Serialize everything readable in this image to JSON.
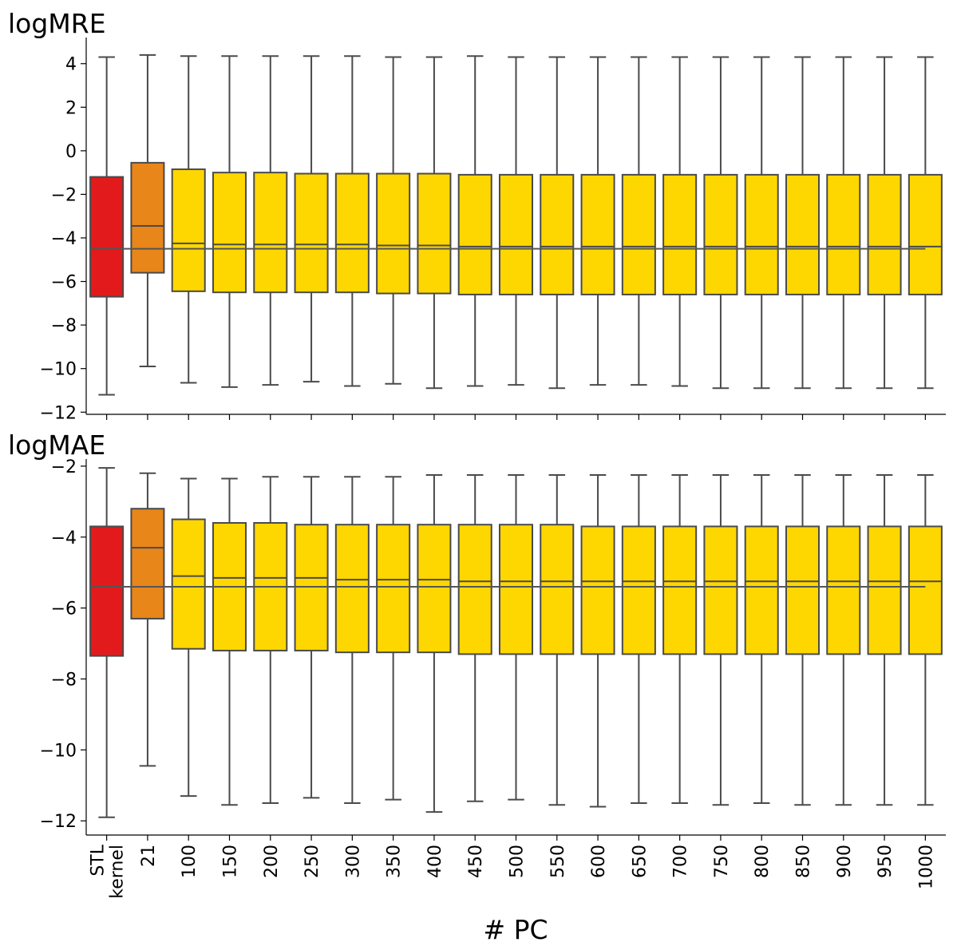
{
  "chart_data": {
    "type": "box",
    "xlabel": "# PC",
    "categories": [
      "STL\nkernel",
      "21",
      "100",
      "150",
      "200",
      "250",
      "300",
      "350",
      "400",
      "450",
      "500",
      "550",
      "600",
      "650",
      "700",
      "750",
      "800",
      "850",
      "900",
      "950",
      "1000"
    ],
    "colors": {
      "baseline": "#e31a1c",
      "pc21": "#e8861a",
      "others": "#ffd700",
      "box_edge": "#4a4a4a",
      "reference_line": "#555555"
    },
    "panels": [
      {
        "title": "logMRE",
        "ylim": [
          -12.1,
          5.2
        ],
        "yticks": [
          4,
          2,
          0,
          -2,
          -4,
          -6,
          -8,
          -10,
          -12
        ],
        "reference_line": -4.5,
        "boxes": [
          {
            "category": "STL\nkernel",
            "whisker_low": -11.2,
            "q1": -6.7,
            "median": -4.5,
            "q3": -1.2,
            "whisker_high": 4.3
          },
          {
            "category": "21",
            "whisker_low": -9.9,
            "q1": -5.6,
            "median": -3.45,
            "q3": -0.55,
            "whisker_high": 4.4
          },
          {
            "category": "100",
            "whisker_low": -10.65,
            "q1": -6.45,
            "median": -4.25,
            "q3": -0.85,
            "whisker_high": 4.35
          },
          {
            "category": "150",
            "whisker_low": -10.85,
            "q1": -6.5,
            "median": -4.3,
            "q3": -1.0,
            "whisker_high": 4.35
          },
          {
            "category": "200",
            "whisker_low": -10.75,
            "q1": -6.5,
            "median": -4.3,
            "q3": -1.0,
            "whisker_high": 4.35
          },
          {
            "category": "250",
            "whisker_low": -10.6,
            "q1": -6.5,
            "median": -4.3,
            "q3": -1.05,
            "whisker_high": 4.35
          },
          {
            "category": "300",
            "whisker_low": -10.8,
            "q1": -6.5,
            "median": -4.3,
            "q3": -1.05,
            "whisker_high": 4.35
          },
          {
            "category": "350",
            "whisker_low": -10.7,
            "q1": -6.55,
            "median": -4.35,
            "q3": -1.05,
            "whisker_high": 4.3
          },
          {
            "category": "400",
            "whisker_low": -10.9,
            "q1": -6.55,
            "median": -4.35,
            "q3": -1.05,
            "whisker_high": 4.3
          },
          {
            "category": "450",
            "whisker_low": -10.8,
            "q1": -6.6,
            "median": -4.4,
            "q3": -1.1,
            "whisker_high": 4.35
          },
          {
            "category": "500",
            "whisker_low": -10.75,
            "q1": -6.6,
            "median": -4.4,
            "q3": -1.1,
            "whisker_high": 4.3
          },
          {
            "category": "550",
            "whisker_low": -10.9,
            "q1": -6.6,
            "median": -4.4,
            "q3": -1.1,
            "whisker_high": 4.3
          },
          {
            "category": "600",
            "whisker_low": -10.75,
            "q1": -6.6,
            "median": -4.4,
            "q3": -1.1,
            "whisker_high": 4.3
          },
          {
            "category": "650",
            "whisker_low": -10.75,
            "q1": -6.6,
            "median": -4.4,
            "q3": -1.1,
            "whisker_high": 4.3
          },
          {
            "category": "700",
            "whisker_low": -10.8,
            "q1": -6.6,
            "median": -4.4,
            "q3": -1.1,
            "whisker_high": 4.3
          },
          {
            "category": "750",
            "whisker_low": -10.9,
            "q1": -6.6,
            "median": -4.4,
            "q3": -1.1,
            "whisker_high": 4.3
          },
          {
            "category": "800",
            "whisker_low": -10.9,
            "q1": -6.6,
            "median": -4.4,
            "q3": -1.1,
            "whisker_high": 4.3
          },
          {
            "category": "850",
            "whisker_low": -10.9,
            "q1": -6.6,
            "median": -4.4,
            "q3": -1.1,
            "whisker_high": 4.3
          },
          {
            "category": "900",
            "whisker_low": -10.9,
            "q1": -6.6,
            "median": -4.4,
            "q3": -1.1,
            "whisker_high": 4.3
          },
          {
            "category": "950",
            "whisker_low": -10.9,
            "q1": -6.6,
            "median": -4.4,
            "q3": -1.1,
            "whisker_high": 4.3
          },
          {
            "category": "1000",
            "whisker_low": -10.9,
            "q1": -6.6,
            "median": -4.4,
            "q3": -1.1,
            "whisker_high": 4.3
          }
        ]
      },
      {
        "title": "logMAE",
        "ylim": [
          -12.4,
          -1.8
        ],
        "yticks": [
          -2,
          -4,
          -6,
          -8,
          -10,
          -12
        ],
        "reference_line": -5.4,
        "boxes": [
          {
            "category": "STL\nkernel",
            "whisker_low": -11.9,
            "q1": -7.35,
            "median": -5.4,
            "q3": -3.7,
            "whisker_high": -2.05
          },
          {
            "category": "21",
            "whisker_low": -10.45,
            "q1": -6.3,
            "median": -4.3,
            "q3": -3.2,
            "whisker_high": -2.2
          },
          {
            "category": "100",
            "whisker_low": -11.3,
            "q1": -7.15,
            "median": -5.1,
            "q3": -3.5,
            "whisker_high": -2.35
          },
          {
            "category": "150",
            "whisker_low": -11.55,
            "q1": -7.2,
            "median": -5.15,
            "q3": -3.6,
            "whisker_high": -2.35
          },
          {
            "category": "200",
            "whisker_low": -11.5,
            "q1": -7.2,
            "median": -5.15,
            "q3": -3.6,
            "whisker_high": -2.3
          },
          {
            "category": "250",
            "whisker_low": -11.35,
            "q1": -7.2,
            "median": -5.15,
            "q3": -3.65,
            "whisker_high": -2.3
          },
          {
            "category": "300",
            "whisker_low": -11.5,
            "q1": -7.25,
            "median": -5.2,
            "q3": -3.65,
            "whisker_high": -2.3
          },
          {
            "category": "350",
            "whisker_low": -11.4,
            "q1": -7.25,
            "median": -5.2,
            "q3": -3.65,
            "whisker_high": -2.3
          },
          {
            "category": "400",
            "whisker_low": -11.75,
            "q1": -7.25,
            "median": -5.2,
            "q3": -3.65,
            "whisker_high": -2.25
          },
          {
            "category": "450",
            "whisker_low": -11.45,
            "q1": -7.3,
            "median": -5.25,
            "q3": -3.65,
            "whisker_high": -2.25
          },
          {
            "category": "500",
            "whisker_low": -11.4,
            "q1": -7.3,
            "median": -5.25,
            "q3": -3.65,
            "whisker_high": -2.25
          },
          {
            "category": "550",
            "whisker_low": -11.55,
            "q1": -7.3,
            "median": -5.25,
            "q3": -3.65,
            "whisker_high": -2.25
          },
          {
            "category": "600",
            "whisker_low": -11.6,
            "q1": -7.3,
            "median": -5.25,
            "q3": -3.7,
            "whisker_high": -2.25
          },
          {
            "category": "650",
            "whisker_low": -11.5,
            "q1": -7.3,
            "median": -5.25,
            "q3": -3.7,
            "whisker_high": -2.25
          },
          {
            "category": "700",
            "whisker_low": -11.5,
            "q1": -7.3,
            "median": -5.25,
            "q3": -3.7,
            "whisker_high": -2.25
          },
          {
            "category": "750",
            "whisker_low": -11.55,
            "q1": -7.3,
            "median": -5.25,
            "q3": -3.7,
            "whisker_high": -2.25
          },
          {
            "category": "800",
            "whisker_low": -11.5,
            "q1": -7.3,
            "median": -5.25,
            "q3": -3.7,
            "whisker_high": -2.25
          },
          {
            "category": "850",
            "whisker_low": -11.55,
            "q1": -7.3,
            "median": -5.25,
            "q3": -3.7,
            "whisker_high": -2.25
          },
          {
            "category": "900",
            "whisker_low": -11.55,
            "q1": -7.3,
            "median": -5.25,
            "q3": -3.7,
            "whisker_high": -2.25
          },
          {
            "category": "950",
            "whisker_low": -11.55,
            "q1": -7.3,
            "median": -5.25,
            "q3": -3.7,
            "whisker_high": -2.25
          },
          {
            "category": "1000",
            "whisker_low": -11.55,
            "q1": -7.3,
            "median": -5.25,
            "q3": -3.7,
            "whisker_high": -2.25
          }
        ]
      }
    ]
  }
}
